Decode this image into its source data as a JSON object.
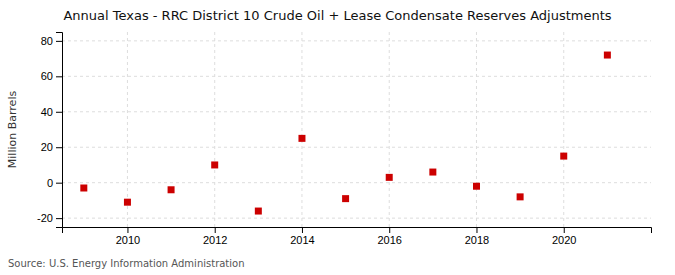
{
  "chart_data": {
    "type": "scatter",
    "title": "Annual Texas - RRC District 10 Crude Oil + Lease Condensate Reserves Adjustments",
    "y_label": "Million Barrels",
    "annotation": "Source: U.S. Energy Information Administration",
    "x": [
      2009,
      2010,
      2011,
      2012,
      2013,
      2014,
      2015,
      2016,
      2017,
      2018,
      2019,
      2020,
      2021
    ],
    "values": [
      -3,
      -11,
      -4,
      10,
      -16,
      25,
      -9,
      3,
      6,
      -2,
      -8,
      15,
      72
    ],
    "color": "#cc0000",
    "marker": "square",
    "xlim": [
      2008.5,
      2022.0
    ],
    "ylim": [
      -25,
      85
    ],
    "xticks": [
      2010,
      2012,
      2014,
      2016,
      2018,
      2020
    ],
    "yticks": [
      -20,
      0,
      20,
      40,
      60,
      80
    ],
    "grid": true
  }
}
